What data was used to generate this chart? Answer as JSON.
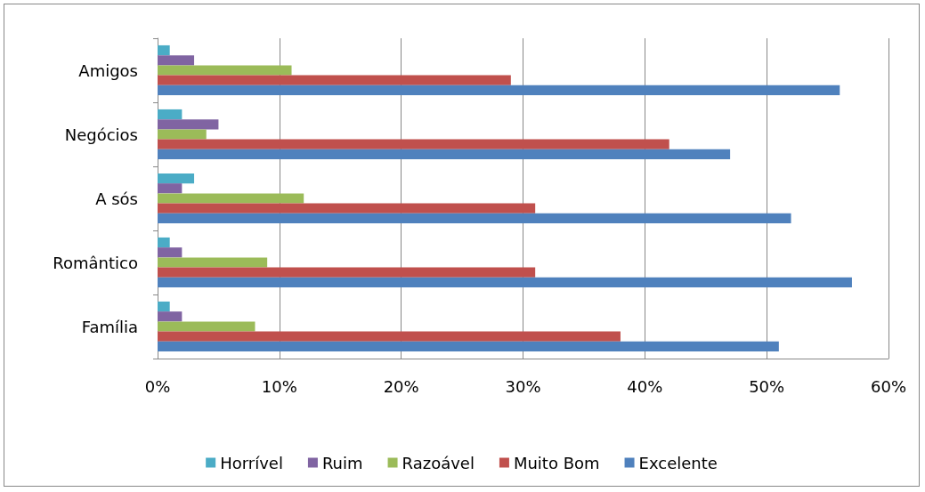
{
  "chart_data": {
    "type": "bar",
    "orientation": "horizontal",
    "categories": [
      "Amigos",
      "Negócios",
      "A sós",
      "Romântico",
      "Família"
    ],
    "series": [
      {
        "name": "Horrível",
        "color": "#4bacc6",
        "values": [
          1,
          2,
          3,
          1,
          1
        ]
      },
      {
        "name": "Ruim",
        "color": "#8064a2",
        "values": [
          3,
          5,
          2,
          2,
          2
        ]
      },
      {
        "name": "Razoável",
        "color": "#9bbb59",
        "values": [
          11,
          4,
          12,
          9,
          8
        ]
      },
      {
        "name": "Muito Bom",
        "color": "#c0504d",
        "values": [
          29,
          42,
          31,
          31,
          38
        ]
      },
      {
        "name": "Excelente",
        "color": "#4f81bd",
        "values": [
          56,
          47,
          52,
          57,
          51
        ]
      }
    ],
    "xlim": [
      0,
      60
    ],
    "xticks": [
      {
        "value": 0,
        "label": "0%"
      },
      {
        "value": 10,
        "label": "10%"
      },
      {
        "value": 20,
        "label": "20%"
      },
      {
        "value": 30,
        "label": "30%"
      },
      {
        "value": 40,
        "label": "40%"
      },
      {
        "value": 50,
        "label": "50%"
      },
      {
        "value": 60,
        "label": "60%"
      }
    ],
    "grid": "x",
    "legend": "bottom"
  }
}
